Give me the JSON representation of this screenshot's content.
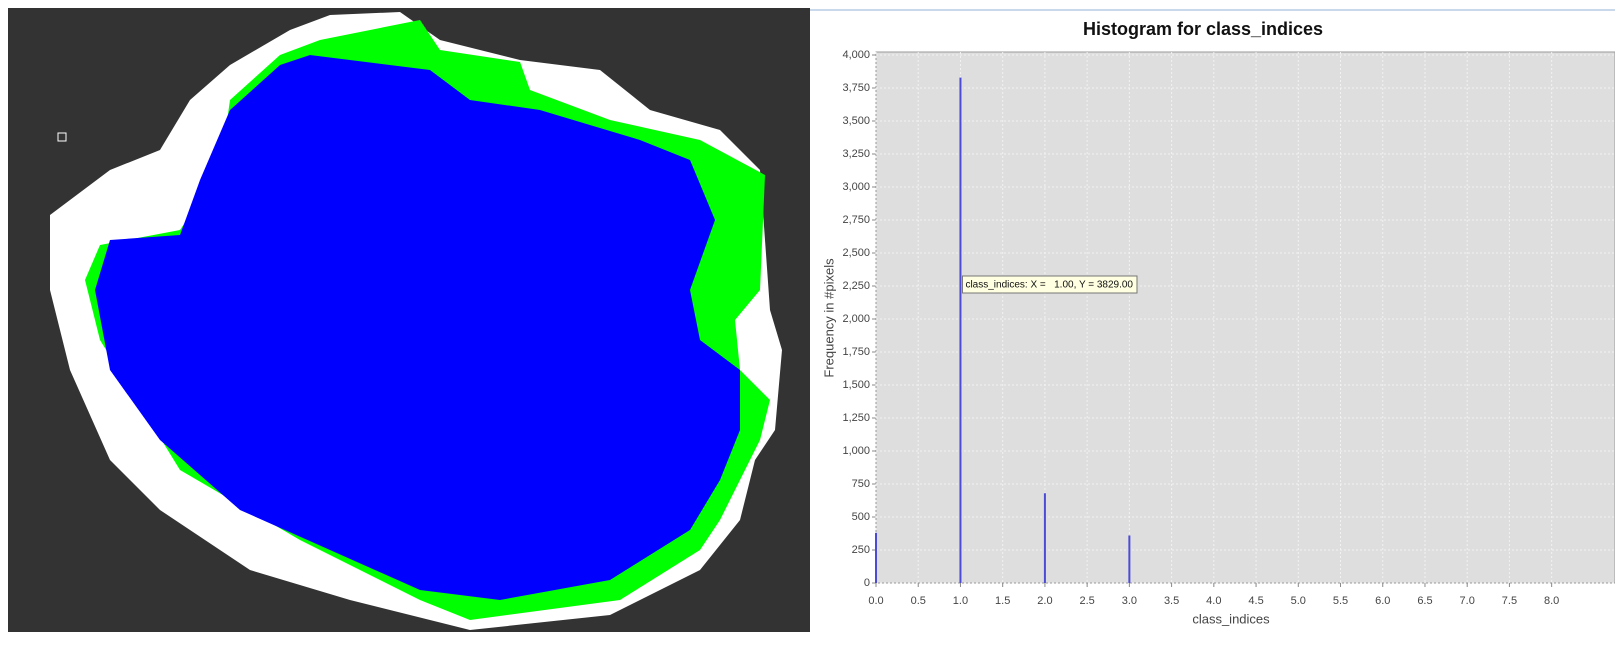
{
  "chart_data": {
    "type": "bar",
    "title": "Histogram for class_indices",
    "x_label": "class_indices",
    "y_label": "Frequency in #pixels",
    "x": [
      0,
      1,
      2,
      3
    ],
    "values": [
      380,
      3829,
      680,
      360
    ],
    "color": "#4b4bd6",
    "xlim": [
      0,
      8.75
    ],
    "ylim": [
      0,
      4000
    ],
    "xticks": [
      {
        "value": 0,
        "label": "0.0"
      },
      {
        "value": 0.5,
        "label": "0.5"
      },
      {
        "value": 1,
        "label": "1.0"
      },
      {
        "value": 1.5,
        "label": "1.5"
      },
      {
        "value": 2,
        "label": "2.0"
      },
      {
        "value": 2.5,
        "label": "2.5"
      },
      {
        "value": 3,
        "label": "3.0"
      },
      {
        "value": 3.5,
        "label": "3.5"
      },
      {
        "value": 4,
        "label": "4.0"
      },
      {
        "value": 4.5,
        "label": "4.5"
      },
      {
        "value": 5,
        "label": "5.0"
      },
      {
        "value": 5.5,
        "label": "5.5"
      },
      {
        "value": 6,
        "label": "6.0"
      },
      {
        "value": 6.5,
        "label": "6.5"
      },
      {
        "value": 7,
        "label": "7.0"
      },
      {
        "value": 7.5,
        "label": "7.5"
      },
      {
        "value": 8,
        "label": "8.0"
      }
    ],
    "yticks": [
      0,
      250,
      500,
      750,
      {
        "value": 1000,
        "label": "1,000"
      },
      {
        "value": 1250,
        "label": "1,250"
      },
      {
        "value": 1500,
        "label": "1,500"
      },
      {
        "value": 1750,
        "label": "1,750"
      },
      {
        "value": 2000,
        "label": "2,000"
      },
      {
        "value": 2250,
        "label": "2,250"
      },
      {
        "value": 2500,
        "label": "2,500"
      },
      {
        "value": 2750,
        "label": "2,750"
      },
      {
        "value": 3000,
        "label": "3,000"
      },
      {
        "value": 3250,
        "label": "3,250"
      },
      {
        "value": 3500,
        "label": "3,500"
      },
      {
        "value": 3750,
        "label": "3,750"
      },
      {
        "value": 4000,
        "label": "4,000"
      }
    ],
    "grid": true,
    "tooltip": "class_indices: X =   1.00, Y = 3829.00"
  }
}
